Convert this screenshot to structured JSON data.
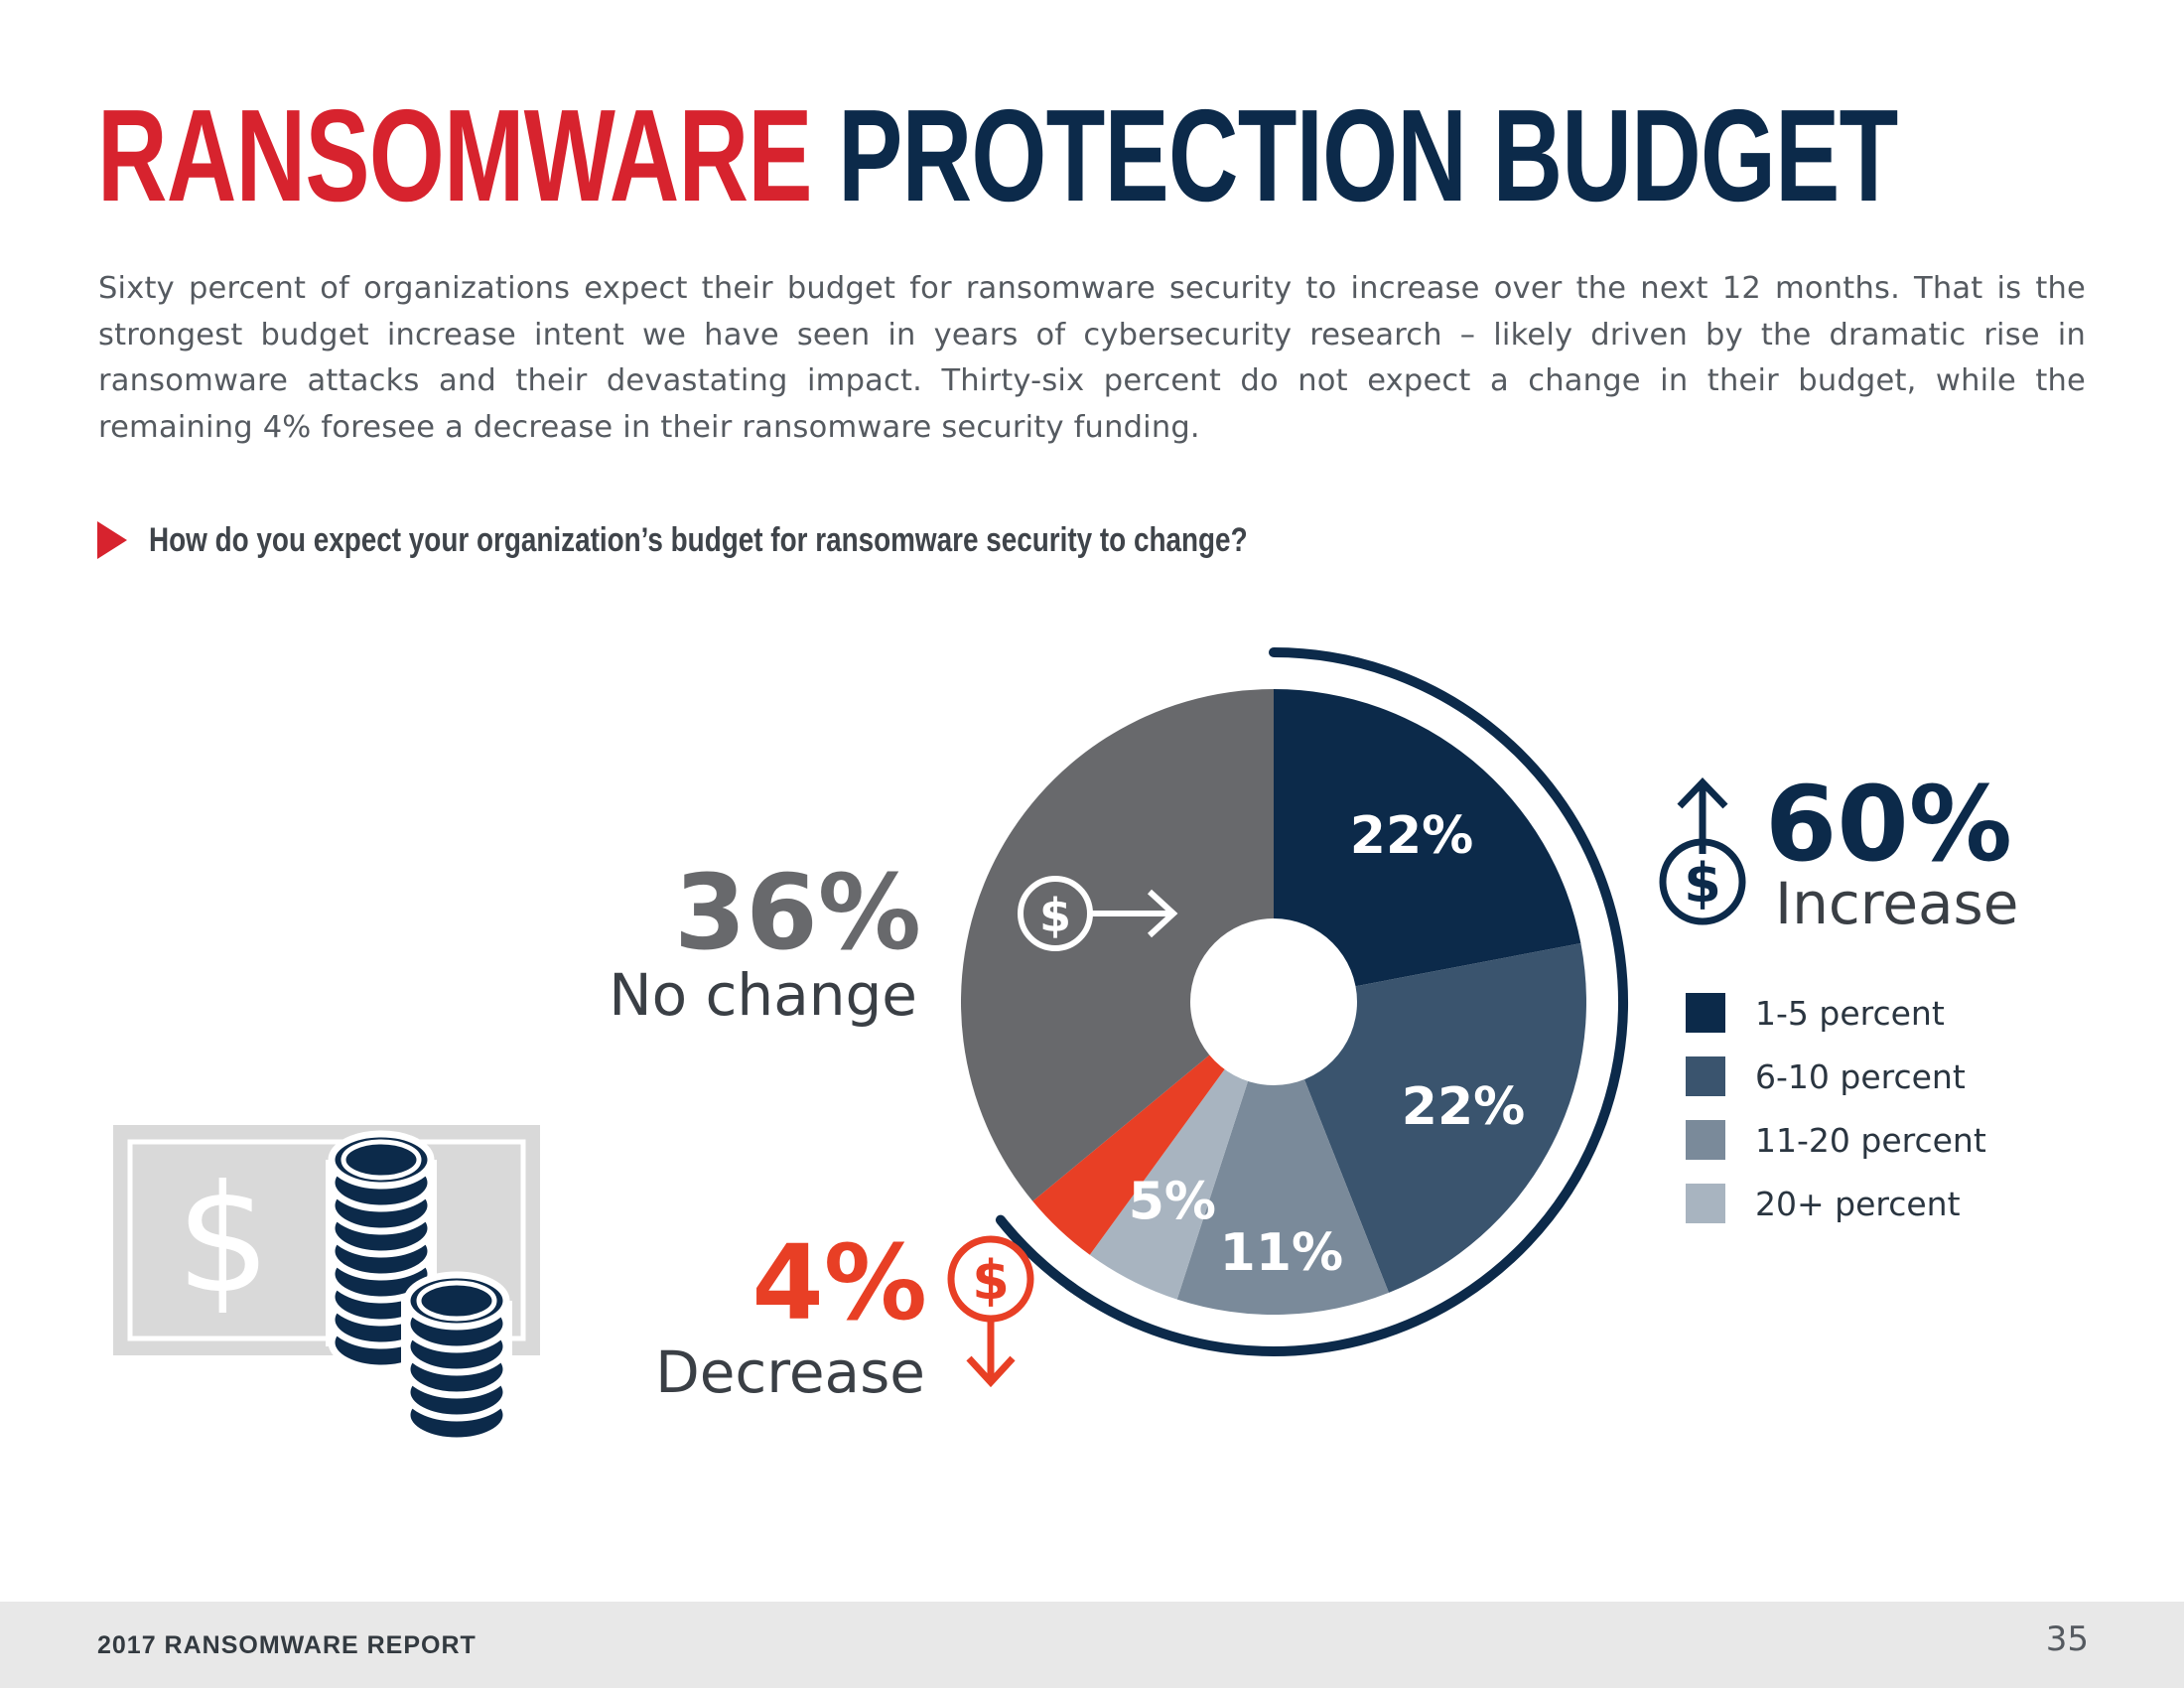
{
  "header": {
    "title_red": "RANSOMWARE",
    "title_navy": "PROTECTION BUDGET",
    "intro": "Sixty percent of organizations expect their budget for ransomware security to increase over the next 12 months. That is the strongest budget increase intent we have seen in years of cybersecurity research – likely driven by the dramatic rise in ransomware attacks and their devastating impact. Thirty-six percent do not expect a change in their budget, while the remaining 4% foresee a decrease in their ransomware security funding.",
    "question": "How do you expect your organization’s budget for ransomware security to change?"
  },
  "colors": {
    "title_red": "#d7232e",
    "title_navy": "#0c2a4a",
    "increase_1_5": "#0c2a4a",
    "increase_6_10": "#3a546e",
    "increase_11_20": "#7a8a9a",
    "increase_20_plus": "#a8b4c0",
    "decrease": "#e83f25",
    "no_change": "#68696c"
  },
  "callouts": {
    "increase": {
      "value": "60%",
      "label": "Increase",
      "icon": "dollar-up-arrow-icon"
    },
    "no_change": {
      "value": "36%",
      "label": "No change",
      "icon": "dollar-right-arrow-icon"
    },
    "decrease": {
      "value": "4%",
      "label": "Decrease",
      "icon": "dollar-down-arrow-icon"
    }
  },
  "chart_data": {
    "type": "pie",
    "title": "How do you expect your organization’s budget for ransomware security to change?",
    "slices": [
      {
        "label": "1-5 percent",
        "group": "Increase",
        "value": 22,
        "display": "22%",
        "color": "#0c2a4a"
      },
      {
        "label": "6-10 percent",
        "group": "Increase",
        "value": 22,
        "display": "22%",
        "color": "#3a546e"
      },
      {
        "label": "11-20 percent",
        "group": "Increase",
        "value": 11,
        "display": "11%",
        "color": "#7a8a9a"
      },
      {
        "label": "20+ percent",
        "group": "Increase",
        "value": 5,
        "display": "5%",
        "color": "#a8b4c0"
      },
      {
        "label": "Decrease",
        "group": "Decrease",
        "value": 4,
        "display": "",
        "color": "#e83f25"
      },
      {
        "label": "No change",
        "group": "No change",
        "value": 36,
        "display": "",
        "color": "#68696c"
      }
    ],
    "legend": {
      "position": "right",
      "items": [
        {
          "label": "1-5 percent",
          "color": "#0c2a4a"
        },
        {
          "label": "6-10 percent",
          "color": "#3a546e"
        },
        {
          "label": "11-20 percent",
          "color": "#7a8a9a"
        },
        {
          "label": "20+ percent",
          "color": "#a8b4c0"
        }
      ]
    },
    "donut_hole": true,
    "increase_arc_total": 60,
    "decrease_arc_total": 4
  },
  "illustration": {
    "icon": "money-coins-icon",
    "bill_symbol": "$"
  },
  "footer": {
    "report_name": "2017 RANSOMWARE REPORT",
    "page_number": "35"
  }
}
